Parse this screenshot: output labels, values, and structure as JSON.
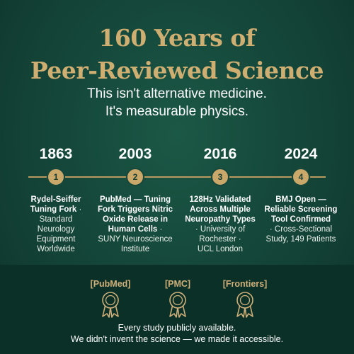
{
  "headline": {
    "line1": "160 Years of",
    "line2": "Peer-Reviewed Science"
  },
  "subhead": {
    "line1": "This isn't alternative medicine.",
    "line2": "It's measurable physics."
  },
  "timeline": [
    {
      "year": "1863",
      "number": "1",
      "title_lines": [
        "Rydel-Seiffer",
        "Tuning Fork"
      ],
      "title_suffix": " · ",
      "desc_lines": [
        "Standard",
        "Neurology",
        "Equipment",
        "Worldwide"
      ]
    },
    {
      "year": "2003",
      "number": "2",
      "title_lines": [
        "PubMed — Tuning",
        "Fork Triggers Nitric",
        "Oxide Release in",
        "Human Cells"
      ],
      "title_suffix": " ·",
      "desc_lines": [
        "SUNY Neuroscience",
        "Institute"
      ]
    },
    {
      "year": "2016",
      "number": "3",
      "title_lines": [
        "128Hz Validated",
        "Across Multiple",
        "Neuropathy Types"
      ],
      "title_suffix": "",
      "desc_lines": [
        "· University of",
        "Rochester ·",
        "UCL London"
      ]
    },
    {
      "year": "2024",
      "number": "4",
      "title_lines": [
        "BMJ Open —",
        "Reliable Screening",
        "Tool Confirmed"
      ],
      "title_suffix": "",
      "desc_lines": [
        "· Cross-Sectional",
        "Study, 149 Patients"
      ]
    }
  ],
  "badges": [
    {
      "label": "PubMed",
      "icon": "award-ribbon-icon"
    },
    {
      "label": "PMC",
      "icon": "award-ribbon-icon"
    },
    {
      "label": "Frontiers",
      "icon": "award-ribbon-icon"
    }
  ],
  "footer": {
    "line1": "Every study publicly available.",
    "line2": "We didn't invent the science — we made it accessible."
  },
  "colors": {
    "background": "#164b3d",
    "gold": "#cfae72",
    "band": "#0b3027"
  }
}
